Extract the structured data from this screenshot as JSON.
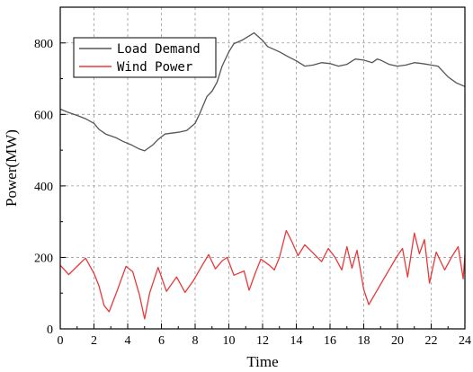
{
  "chart_data": {
    "type": "line",
    "title": "",
    "xlabel": "Time",
    "ylabel": "Power(MW)",
    "xlim": [
      0,
      24
    ],
    "ylim": [
      0,
      900
    ],
    "xticks": [
      0,
      2,
      4,
      6,
      8,
      10,
      12,
      14,
      16,
      18,
      20,
      22,
      24
    ],
    "yticks": [
      0,
      200,
      400,
      600,
      800
    ],
    "grid": true,
    "legend": "top-left",
    "series": [
      {
        "name": "Load Demand",
        "color": "#555555",
        "points": [
          [
            0,
            615
          ],
          [
            0.5,
            605
          ],
          [
            1,
            597
          ],
          [
            1.5,
            588
          ],
          [
            2,
            575
          ],
          [
            2.3,
            558
          ],
          [
            2.7,
            545
          ],
          [
            3.3,
            535
          ],
          [
            3.7,
            525
          ],
          [
            4.2,
            515
          ],
          [
            4.7,
            503
          ],
          [
            5,
            498
          ],
          [
            5.5,
            515
          ],
          [
            5.8,
            530
          ],
          [
            6.2,
            545
          ],
          [
            7,
            550
          ],
          [
            7.5,
            555
          ],
          [
            8,
            575
          ],
          [
            8.3,
            605
          ],
          [
            8.7,
            650
          ],
          [
            9,
            665
          ],
          [
            9.3,
            690
          ],
          [
            9.6,
            735
          ],
          [
            10,
            775
          ],
          [
            10.3,
            798
          ],
          [
            10.8,
            808
          ],
          [
            11.5,
            828
          ],
          [
            12,
            807
          ],
          [
            12.3,
            790
          ],
          [
            13,
            775
          ],
          [
            13.5,
            762
          ],
          [
            14,
            750
          ],
          [
            14.5,
            735
          ],
          [
            15,
            738
          ],
          [
            15.5,
            745
          ],
          [
            16,
            742
          ],
          [
            16.5,
            735
          ],
          [
            17,
            740
          ],
          [
            17.5,
            755
          ],
          [
            18,
            752
          ],
          [
            18.5,
            745
          ],
          [
            18.8,
            755
          ],
          [
            19,
            752
          ],
          [
            19.5,
            740
          ],
          [
            20,
            735
          ],
          [
            20.5,
            738
          ],
          [
            21,
            745
          ],
          [
            21.5,
            742
          ],
          [
            22,
            738
          ],
          [
            22.4,
            735
          ],
          [
            23,
            705
          ],
          [
            23.5,
            688
          ],
          [
            24,
            678
          ]
        ]
      },
      {
        "name": "Wind Power",
        "color": "#e8393a",
        "points": [
          [
            0,
            178
          ],
          [
            0.5,
            152
          ],
          [
            1,
            175
          ],
          [
            1.5,
            198
          ],
          [
            2,
            155
          ],
          [
            2.3,
            120
          ],
          [
            2.6,
            65
          ],
          [
            2.9,
            48
          ],
          [
            3.4,
            110
          ],
          [
            3.9,
            175
          ],
          [
            4.3,
            160
          ],
          [
            4.7,
            95
          ],
          [
            5,
            28
          ],
          [
            5.3,
            100
          ],
          [
            5.8,
            172
          ],
          [
            6.3,
            105
          ],
          [
            6.9,
            145
          ],
          [
            7.4,
            102
          ],
          [
            7.9,
            135
          ],
          [
            8.3,
            168
          ],
          [
            8.8,
            208
          ],
          [
            9.2,
            168
          ],
          [
            9.6,
            190
          ],
          [
            9.9,
            200
          ],
          [
            10.3,
            150
          ],
          [
            10.9,
            162
          ],
          [
            11.2,
            108
          ],
          [
            11.6,
            160
          ],
          [
            11.9,
            195
          ],
          [
            12.4,
            178
          ],
          [
            12.7,
            165
          ],
          [
            13,
            200
          ],
          [
            13.4,
            275
          ],
          [
            13.7,
            248
          ],
          [
            14.1,
            205
          ],
          [
            14.5,
            235
          ],
          [
            15,
            212
          ],
          [
            15.5,
            188
          ],
          [
            15.9,
            225
          ],
          [
            16.3,
            200
          ],
          [
            16.7,
            165
          ],
          [
            17,
            230
          ],
          [
            17.3,
            170
          ],
          [
            17.6,
            220
          ],
          [
            18,
            110
          ],
          [
            18.3,
            68
          ],
          [
            19,
            125
          ],
          [
            19.5,
            165
          ],
          [
            20,
            205
          ],
          [
            20.3,
            225
          ],
          [
            20.6,
            145
          ],
          [
            21,
            268
          ],
          [
            21.3,
            210
          ],
          [
            21.6,
            250
          ],
          [
            21.9,
            128
          ],
          [
            22.3,
            215
          ],
          [
            22.8,
            165
          ],
          [
            23.2,
            200
          ],
          [
            23.6,
            230
          ],
          [
            23.9,
            140
          ],
          [
            24,
            208
          ]
        ]
      }
    ]
  }
}
